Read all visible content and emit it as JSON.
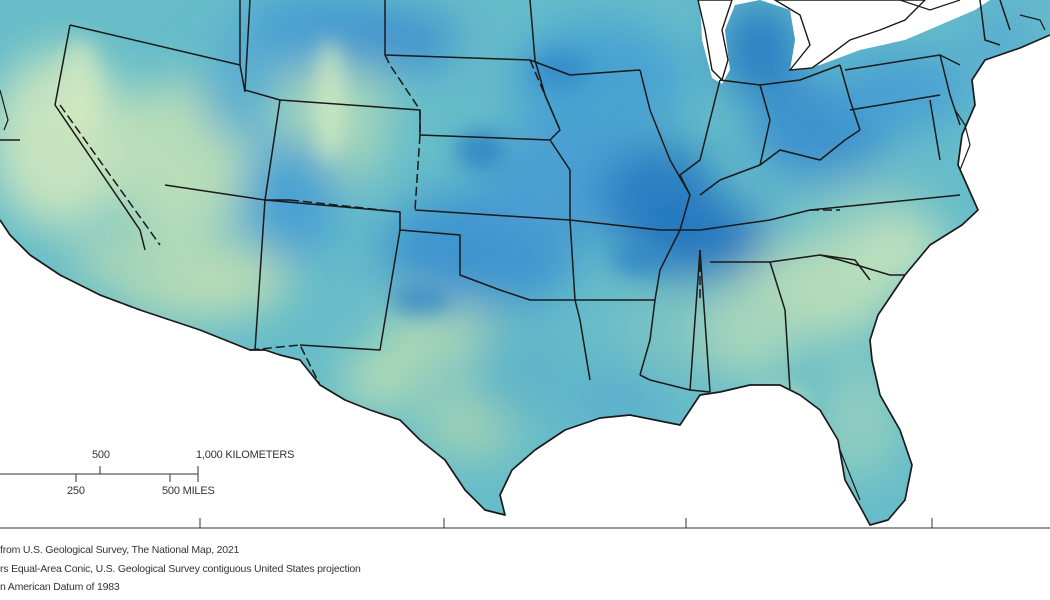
{
  "scale_bar": {
    "km_labels": [
      "500",
      "1,000 KILOMETERS"
    ],
    "mile_labels": [
      "250",
      "500 MILES"
    ]
  },
  "credits": [
    "from U.S. Geological Survey, The National Map, 2021",
    "rs Equal-Area Conic, U.S. Geological Survey contiguous United States projection",
    "n American Datum of 1983"
  ],
  "colors": {
    "dark_blue": "#2b7fc2",
    "mid_blue": "#4aa0d0",
    "teal": "#5cb6c9",
    "pale_green": "#bfe0bd",
    "border": "#1a1a1a",
    "water": "#ffffff"
  }
}
